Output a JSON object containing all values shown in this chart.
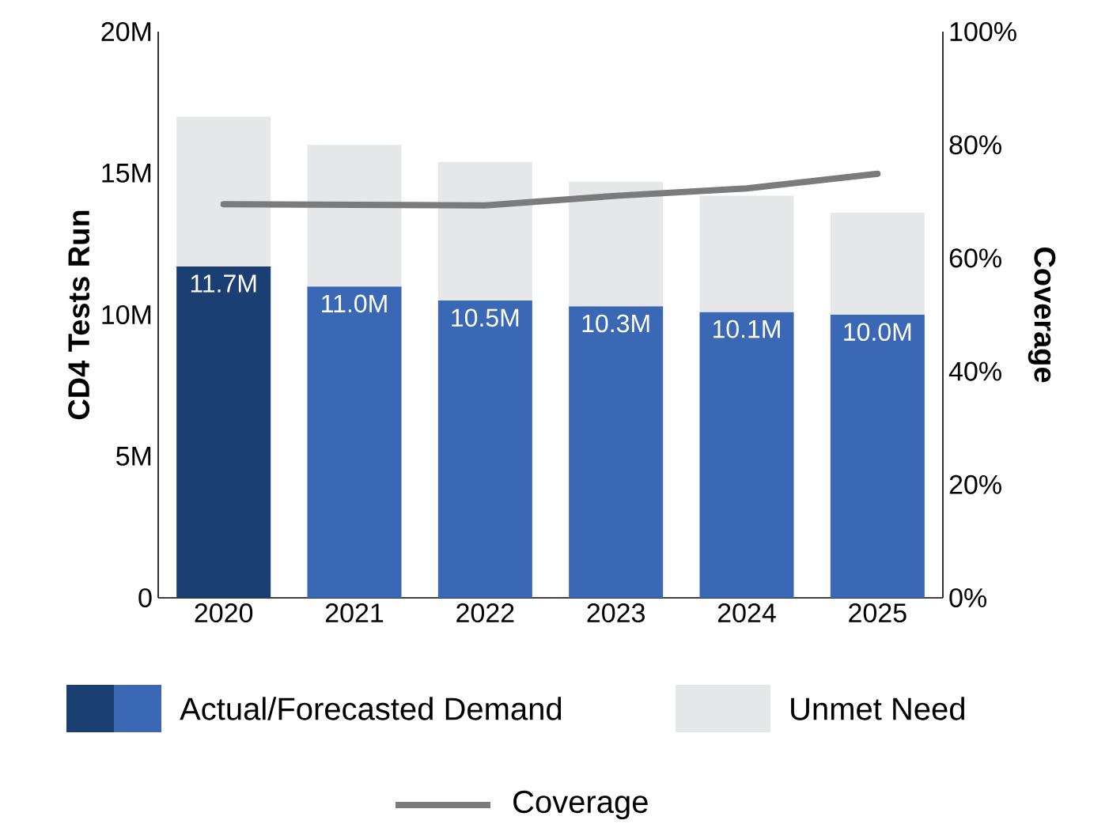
{
  "chart_data": {
    "type": "bar",
    "stacked": true,
    "categories": [
      "2020",
      "2021",
      "2022",
      "2023",
      "2024",
      "2025"
    ],
    "ylabel": "CD4 Tests Run",
    "y2label": "Coverage",
    "series": [
      {
        "name": "Actual/Forecasted Demand",
        "colors": [
          "#1c3f73",
          "#3a68b4",
          "#3a68b4",
          "#3a68b4",
          "#3a68b4",
          "#3a68b4"
        ],
        "values": [
          11.7,
          11.0,
          10.5,
          10.3,
          10.1,
          10.0
        ],
        "value_labels": [
          "11.7M",
          "11.0M",
          "10.5M",
          "10.3M",
          "10.1M",
          "10.0M"
        ]
      },
      {
        "name": "Unmet Need",
        "color": "#e6e7e9",
        "values": [
          5.3,
          5.0,
          4.9,
          4.4,
          4.1,
          3.6
        ]
      },
      {
        "name": "Coverage",
        "type": "line",
        "axis": "y2",
        "color": "#7b7b7b",
        "values": [
          69.5,
          69.4,
          69.3,
          71,
          72.3,
          74.9
        ]
      }
    ],
    "ylim": [
      0,
      20
    ],
    "yticks": [
      0,
      {
        "value": 5,
        "label": "5M"
      },
      {
        "value": 10,
        "label": "10M"
      },
      {
        "value": 15,
        "label": "15M"
      },
      {
        "value": 20,
        "label": "20M"
      }
    ],
    "y2lim": [
      0,
      100
    ],
    "y2ticks": [
      {
        "value": 0,
        "label": "0%"
      },
      {
        "value": 20,
        "label": "20%"
      },
      {
        "value": 40,
        "label": "40%"
      },
      {
        "value": 60,
        "label": "60%"
      },
      {
        "value": 80,
        "label": "80%"
      },
      {
        "value": 100,
        "label": "100%"
      }
    ],
    "grid": false,
    "legend": "bottom"
  }
}
